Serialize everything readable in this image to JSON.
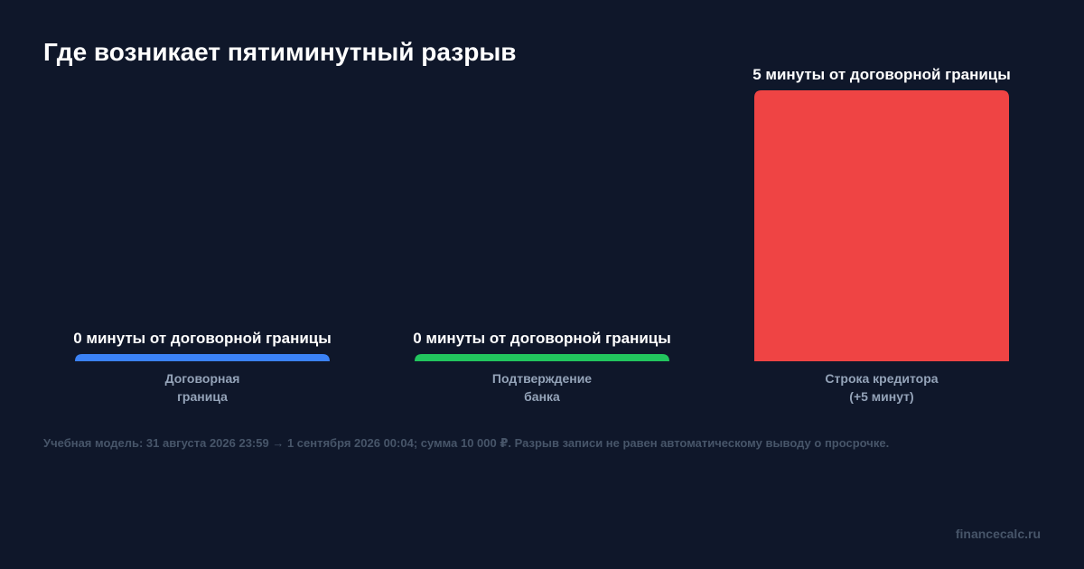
{
  "title": "Где возникает пятиминутный разрыв",
  "footnote": "Учебная модель: 31 августа 2026 23:59 → 1 сентября 2026 00:04; сумма 10 000 ₽. Разрыв записи не равен автоматическому выводу о просрочке.",
  "watermark": "financecalc.ru",
  "colors": {
    "background": "#0f172a",
    "title_text": "#ffffff",
    "value_label_text": "#ffffff",
    "category_label_text": "#94a3b8",
    "footnote_text": "#475569"
  },
  "chart_data": {
    "type": "bar",
    "title": "Где возникает пятиминутный разрыв",
    "xlabel": "",
    "ylabel": "",
    "unit": "минуты от договорной границы",
    "ylim": [
      0,
      5
    ],
    "grid": false,
    "legend": "none",
    "categories": [
      [
        "Договорная",
        "граница"
      ],
      [
        "Подтверждение",
        "банка"
      ],
      [
        "Строка кредитора",
        "(+5 минут)"
      ]
    ],
    "values": [
      0,
      0,
      5
    ],
    "data_labels": [
      "0 минуты от договорной границы",
      "0 минуты от договорной границы",
      "5 минуты от договорной границы"
    ],
    "bar_colors": [
      "#3b82f6",
      "#22c55e",
      "#ef4444"
    ]
  }
}
